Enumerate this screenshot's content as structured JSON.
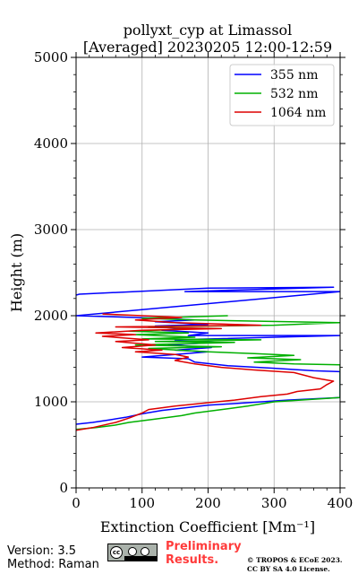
{
  "chart_data": {
    "type": "line",
    "title_line1": "pollyxt_cyp at Limassol",
    "title_line2": "[Averaged] 20230205 12:00-12:59",
    "xlabel": "Extinction Coefficient [Mm⁻¹]",
    "ylabel": "Height (m)",
    "xlim": [
      0,
      400
    ],
    "ylim": [
      0,
      5000
    ],
    "xticks": [
      "0",
      "100",
      "200",
      "300",
      "400"
    ],
    "yticks": [
      "0",
      "1000",
      "2000",
      "3000",
      "4000",
      "5000"
    ],
    "grid": true,
    "legend_position": "top-right",
    "series": [
      {
        "name": "355 nm",
        "color": "#0000ff",
        "points": [
          [
            0,
            740
          ],
          [
            25,
            760
          ],
          [
            50,
            790
          ],
          [
            75,
            820
          ],
          [
            100,
            860
          ],
          [
            130,
            900
          ],
          [
            165,
            930
          ],
          [
            200,
            960
          ],
          [
            260,
            990
          ],
          [
            320,
            1020
          ],
          [
            400,
            1050
          ],
          [
            400,
            1350
          ],
          [
            360,
            1360
          ],
          [
            300,
            1390
          ],
          [
            230,
            1420
          ],
          [
            180,
            1460
          ],
          [
            170,
            1500
          ],
          [
            100,
            1520
          ],
          [
            150,
            1550
          ],
          [
            200,
            1580
          ],
          [
            150,
            1600
          ],
          [
            205,
            1630
          ],
          [
            140,
            1660
          ],
          [
            210,
            1690
          ],
          [
            150,
            1720
          ],
          [
            400,
            1770
          ],
          [
            170,
            1770
          ],
          [
            200,
            1800
          ],
          [
            130,
            1830
          ],
          [
            160,
            1850
          ],
          [
            120,
            1880
          ],
          [
            200,
            1900
          ],
          [
            120,
            1930
          ],
          [
            180,
            1950
          ],
          [
            130,
            1970
          ],
          [
            0,
            2000
          ],
          [
            400,
            2280
          ],
          [
            165,
            2280
          ],
          [
            250,
            2300
          ],
          [
            390,
            2330
          ],
          [
            200,
            2320
          ],
          [
            5,
            2250
          ],
          [
            0,
            2240
          ]
        ]
      },
      {
        "name": "532 nm",
        "color": "#00b000",
        "points": [
          [
            0,
            680
          ],
          [
            30,
            700
          ],
          [
            60,
            730
          ],
          [
            80,
            760
          ],
          [
            120,
            800
          ],
          [
            160,
            840
          ],
          [
            180,
            870
          ],
          [
            230,
            920
          ],
          [
            260,
            950
          ],
          [
            300,
            1000
          ],
          [
            400,
            1050
          ],
          [
            400,
            1430
          ],
          [
            330,
            1440
          ],
          [
            270,
            1460
          ],
          [
            340,
            1490
          ],
          [
            260,
            1510
          ],
          [
            330,
            1540
          ],
          [
            270,
            1560
          ],
          [
            200,
            1580
          ],
          [
            110,
            1620
          ],
          [
            220,
            1640
          ],
          [
            90,
            1660
          ],
          [
            240,
            1690
          ],
          [
            120,
            1700
          ],
          [
            280,
            1720
          ],
          [
            100,
            1730
          ],
          [
            180,
            1750
          ],
          [
            90,
            1780
          ],
          [
            170,
            1800
          ],
          [
            80,
            1820
          ],
          [
            190,
            1850
          ],
          [
            110,
            1870
          ],
          [
            300,
            1890
          ],
          [
            400,
            1920
          ],
          [
            180,
            1950
          ],
          [
            100,
            1970
          ],
          [
            230,
            2000
          ]
        ]
      },
      {
        "name": "1064 nm",
        "color": "#dd0000",
        "points": [
          [
            0,
            670
          ],
          [
            25,
            700
          ],
          [
            60,
            760
          ],
          [
            80,
            810
          ],
          [
            100,
            870
          ],
          [
            110,
            910
          ],
          [
            150,
            950
          ],
          [
            200,
            990
          ],
          [
            240,
            1020
          ],
          [
            280,
            1060
          ],
          [
            320,
            1090
          ],
          [
            335,
            1120
          ],
          [
            370,
            1150
          ],
          [
            380,
            1200
          ],
          [
            390,
            1240
          ],
          [
            360,
            1280
          ],
          [
            330,
            1340
          ],
          [
            270,
            1370
          ],
          [
            220,
            1400
          ],
          [
            180,
            1440
          ],
          [
            150,
            1480
          ],
          [
            170,
            1520
          ],
          [
            150,
            1550
          ],
          [
            90,
            1580
          ],
          [
            130,
            1600
          ],
          [
            70,
            1630
          ],
          [
            120,
            1660
          ],
          [
            60,
            1700
          ],
          [
            110,
            1720
          ],
          [
            40,
            1760
          ],
          [
            90,
            1780
          ],
          [
            30,
            1800
          ],
          [
            100,
            1830
          ],
          [
            220,
            1850
          ],
          [
            60,
            1870
          ],
          [
            280,
            1890
          ],
          [
            150,
            1920
          ],
          [
            90,
            1950
          ],
          [
            160,
            1980
          ],
          [
            40,
            2020
          ]
        ]
      }
    ]
  },
  "footer": {
    "version": "Version: 3.5",
    "method": "Method: Raman",
    "badge_text": "cc",
    "preliminary": "Preliminary Results.",
    "copyright_line1": "© TROPOS & ECoE 2023.",
    "copyright_line2": "CC BY SA 4.0 License."
  }
}
